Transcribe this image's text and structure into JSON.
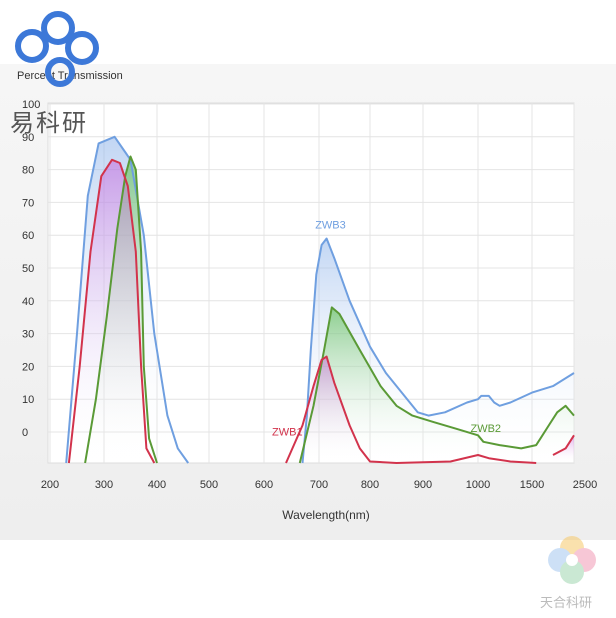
{
  "brand": {
    "logo_text": "易科研",
    "watermark_text": "天合科研",
    "logo_color": "#3c78d8"
  },
  "chart_data": {
    "type": "line",
    "title": "",
    "ylabel": "Percent Transmission",
    "xlabel": "Wavelength(nm)",
    "x_ticks": [
      200,
      300,
      400,
      500,
      600,
      700,
      800,
      900,
      1000,
      1500,
      2500
    ],
    "y_ticks": [
      0,
      10,
      20,
      30,
      40,
      50,
      60,
      70,
      80,
      90,
      100
    ],
    "ylim": [
      -10,
      100
    ],
    "grid": true,
    "series": [
      {
        "name": "ZWB3",
        "color": "#6f9fe0",
        "fill": "#8fb4ea",
        "label_x": 720,
        "label_y": 62,
        "points": [
          [
            230,
            -10
          ],
          [
            250,
            30
          ],
          [
            270,
            72
          ],
          [
            290,
            88
          ],
          [
            320,
            90
          ],
          [
            350,
            83
          ],
          [
            375,
            60
          ],
          [
            395,
            30
          ],
          [
            420,
            5
          ],
          [
            440,
            -5
          ],
          [
            460,
            -10
          ],
          [
            670,
            -10
          ],
          [
            678,
            5
          ],
          [
            685,
            25
          ],
          [
            695,
            48
          ],
          [
            705,
            57
          ],
          [
            715,
            59
          ],
          [
            730,
            53
          ],
          [
            760,
            40
          ],
          [
            800,
            26
          ],
          [
            830,
            18
          ],
          [
            860,
            12
          ],
          [
            890,
            6
          ],
          [
            910,
            5
          ],
          [
            940,
            6
          ],
          [
            980,
            9
          ],
          [
            1000,
            10
          ],
          [
            1030,
            11
          ],
          [
            1100,
            11
          ],
          [
            1150,
            9
          ],
          [
            1200,
            8
          ],
          [
            1300,
            9
          ],
          [
            1500,
            12
          ],
          [
            2000,
            14
          ],
          [
            2500,
            18
          ]
        ]
      },
      {
        "name": "ZWB2",
        "color": "#5a9a36",
        "fill": "#5fbf55",
        "label_x": 1060,
        "label_y": 0,
        "points": [
          [
            265,
            -10
          ],
          [
            285,
            10
          ],
          [
            305,
            35
          ],
          [
            325,
            62
          ],
          [
            340,
            78
          ],
          [
            350,
            84
          ],
          [
            360,
            80
          ],
          [
            370,
            55
          ],
          [
            375,
            20
          ],
          [
            385,
            -2
          ],
          [
            400,
            -10
          ],
          [
            665,
            -10
          ],
          [
            690,
            8
          ],
          [
            710,
            25
          ],
          [
            725,
            38
          ],
          [
            740,
            36
          ],
          [
            780,
            25
          ],
          [
            820,
            14
          ],
          [
            850,
            8
          ],
          [
            880,
            5
          ],
          [
            920,
            3
          ],
          [
            960,
            1
          ],
          [
            1000,
            -1
          ],
          [
            1050,
            -3
          ],
          [
            1200,
            -4
          ],
          [
            1400,
            -5
          ],
          [
            1600,
            -4
          ],
          [
            1700,
            -2
          ],
          [
            1900,
            2
          ],
          [
            2100,
            6
          ],
          [
            2300,
            8
          ],
          [
            2500,
            5
          ]
        ]
      },
      {
        "name": "ZWB1",
        "color": "#d2334c",
        "fill": "#c64fd8",
        "label_x": 640,
        "label_y": -1,
        "points": [
          [
            235,
            -10
          ],
          [
            255,
            20
          ],
          [
            275,
            55
          ],
          [
            295,
            78
          ],
          [
            315,
            83
          ],
          [
            330,
            82
          ],
          [
            345,
            75
          ],
          [
            360,
            55
          ],
          [
            370,
            20
          ],
          [
            380,
            -5
          ],
          [
            395,
            -10
          ],
          [
            640,
            -10
          ],
          [
            670,
            2
          ],
          [
            690,
            14
          ],
          [
            705,
            22
          ],
          [
            715,
            23
          ],
          [
            730,
            15
          ],
          [
            760,
            2
          ],
          [
            780,
            -5
          ],
          [
            800,
            -9
          ],
          [
            850,
            -10
          ],
          [
            950,
            -9
          ],
          [
            1000,
            -7
          ],
          [
            1100,
            -8
          ],
          [
            1300,
            -9
          ],
          [
            1600,
            -10
          ],
          [
            2000,
            -7
          ],
          [
            2300,
            -5
          ],
          [
            2500,
            -1
          ]
        ]
      }
    ]
  }
}
